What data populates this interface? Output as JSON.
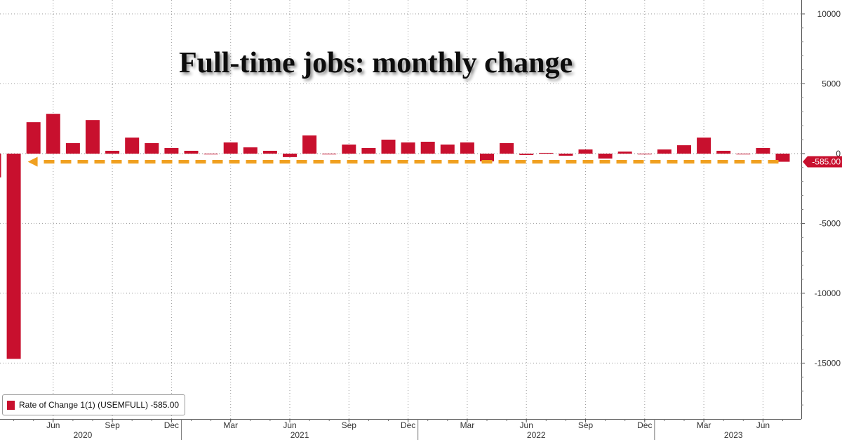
{
  "chart_data": {
    "type": "bar",
    "title": "Full-time jobs: monthly change",
    "legend": {
      "label": "Rate of Change 1(1) (USEMFULL) -585.00",
      "placement": "bottom-left"
    },
    "last_value_label": "-585.00",
    "colors": {
      "bar": "#c8102e",
      "arrow": "#f0a020",
      "grid": "#9a9a9a"
    },
    "ylim": [
      -19000,
      11000
    ],
    "yticks": [
      10000,
      5000,
      0,
      -5000,
      -10000,
      -15000
    ],
    "ytick_labels": [
      "10000",
      "5000",
      "0",
      "-5000",
      "-10000",
      "-15000"
    ],
    "grid": true,
    "month_ticks": [
      {
        "label": "Jun",
        "date": "2020-06"
      },
      {
        "label": "Sep",
        "date": "2020-09"
      },
      {
        "label": "Dec",
        "date": "2020-12"
      },
      {
        "label": "Mar",
        "date": "2021-03"
      },
      {
        "label": "Jun",
        "date": "2021-06"
      },
      {
        "label": "Sep",
        "date": "2021-09"
      },
      {
        "label": "Dec",
        "date": "2021-12"
      },
      {
        "label": "Mar",
        "date": "2022-03"
      },
      {
        "label": "Jun",
        "date": "2022-06"
      },
      {
        "label": "Sep",
        "date": "2022-09"
      },
      {
        "label": "Dec",
        "date": "2022-12"
      },
      {
        "label": "Mar",
        "date": "2023-03"
      },
      {
        "label": "Jun",
        "date": "2023-06"
      }
    ],
    "years": [
      "2020",
      "2021",
      "2022",
      "2023"
    ],
    "x": [
      "2020-03",
      "2020-04",
      "2020-05",
      "2020-06",
      "2020-07",
      "2020-08",
      "2020-09",
      "2020-10",
      "2020-11",
      "2020-12",
      "2021-01",
      "2021-02",
      "2021-03",
      "2021-04",
      "2021-05",
      "2021-06",
      "2021-07",
      "2021-08",
      "2021-09",
      "2021-10",
      "2021-11",
      "2021-12",
      "2022-01",
      "2022-02",
      "2022-03",
      "2022-04",
      "2022-05",
      "2022-06",
      "2022-07",
      "2022-08",
      "2022-09",
      "2022-10",
      "2022-11",
      "2022-12",
      "2023-01",
      "2023-02",
      "2023-03",
      "2023-04",
      "2023-05",
      "2023-06",
      "2023-07"
    ],
    "values": [
      -1700,
      -14700,
      2250,
      2850,
      750,
      2400,
      200,
      1150,
      750,
      400,
      200,
      -50,
      800,
      450,
      200,
      -250,
      1300,
      -50,
      650,
      400,
      1000,
      800,
      850,
      650,
      800,
      -550,
      750,
      -100,
      50,
      -150,
      300,
      -350,
      150,
      -50,
      300,
      600,
      1150,
      200,
      -50,
      400,
      -585
    ]
  }
}
